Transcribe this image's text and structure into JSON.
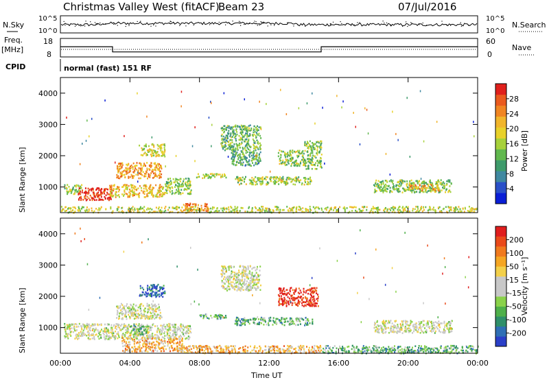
{
  "header": {
    "station": "Christmas Valley West (fitACF)",
    "beam": "Beam 23",
    "date": "07/Jul/2016"
  },
  "strips": {
    "nsky_label": "N.Sky",
    "nsearch_label": "N.Search",
    "noise_ticks": [
      "10^5",
      "10^0"
    ],
    "freq_label": "Freq.",
    "freq_unit": "[MHz]",
    "freq_ticks": [
      "18",
      "8"
    ],
    "freq_high_mhz": 13.5,
    "freq_low_mhz": 10.7,
    "nave_label": "Nave",
    "nave_ticks": [
      "60",
      "0"
    ],
    "cpid_label": "CPID",
    "cpid_text": "normal (fast) 151 RF"
  },
  "chart_data": [
    {
      "type": "heatmap",
      "name": "power",
      "ylabel": "Slant Range [km]",
      "xlabel": "",
      "xlim_hours": [
        0,
        24
      ],
      "ylim_km": [
        180,
        4500
      ],
      "y_ticks": [
        "1000",
        "2000",
        "3000",
        "4000"
      ],
      "colorbar": {
        "label": "Power [dB]",
        "ticks": [
          "4",
          "8",
          "12",
          "16",
          "20",
          "24",
          "28"
        ],
        "colors": [
          "#0a1ed6",
          "#2a50c8",
          "#3f88a0",
          "#3e9b6b",
          "#61b84e",
          "#a7d13a",
          "#e8d12a",
          "#f1b52b",
          "#f08522",
          "#ea5a1e",
          "#e0201c"
        ]
      },
      "regions": [
        {
          "t0": 0.2,
          "t1": 1.2,
          "r0": 800,
          "r1": 1100,
          "level": 0.45
        },
        {
          "t0": 1.0,
          "t1": 3.0,
          "r0": 600,
          "r1": 1000,
          "level": 0.95
        },
        {
          "t0": 2.8,
          "t1": 6.0,
          "r0": 700,
          "r1": 1100,
          "level": 0.65
        },
        {
          "t0": 3.2,
          "t1": 5.8,
          "r0": 1300,
          "r1": 1800,
          "level": 0.72
        },
        {
          "t0": 4.5,
          "t1": 6.0,
          "r0": 2000,
          "r1": 2400,
          "level": 0.55
        },
        {
          "t0": 6.0,
          "t1": 7.5,
          "r0": 800,
          "r1": 1300,
          "level": 0.45
        },
        {
          "t0": 7.0,
          "t1": 8.5,
          "r0": 250,
          "r1": 500,
          "level": 0.85
        },
        {
          "t0": 7.8,
          "t1": 9.5,
          "r0": 1300,
          "r1": 1450,
          "level": 0.55
        },
        {
          "t0": 9.2,
          "t1": 11.5,
          "r0": 2200,
          "r1": 3000,
          "level": 0.4
        },
        {
          "t0": 9.8,
          "t1": 11.5,
          "r0": 1700,
          "r1": 2200,
          "level": 0.35
        },
        {
          "t0": 10.0,
          "t1": 14.5,
          "r0": 1100,
          "r1": 1350,
          "level": 0.5
        },
        {
          "t0": 12.5,
          "t1": 14.0,
          "r0": 1700,
          "r1": 2200,
          "level": 0.5
        },
        {
          "t0": 14.0,
          "t1": 15.0,
          "r0": 1600,
          "r1": 2500,
          "level": 0.45
        },
        {
          "t0": 18.0,
          "t1": 22.5,
          "r0": 850,
          "r1": 1250,
          "level": 0.45
        },
        {
          "t0": 20.0,
          "t1": 21.8,
          "r0": 900,
          "r1": 1100,
          "level": 0.7
        },
        {
          "t0": 0.0,
          "t1": 24.0,
          "r0": 200,
          "r1": 400,
          "level": 0.55
        }
      ]
    },
    {
      "type": "heatmap",
      "name": "velocity",
      "ylabel": "Slant Range [km]",
      "xlabel": "Time UT",
      "xlim_hours": [
        0,
        24
      ],
      "ylim_km": [
        180,
        4500
      ],
      "y_ticks": [
        "1000",
        "2000",
        "3000",
        "4000"
      ],
      "x_ticks": [
        "00:00",
        "04:00",
        "08:00",
        "12:00",
        "16:00",
        "20:00",
        "00:00"
      ],
      "colorbar": {
        "label": "Velocity [m s⁻¹]",
        "ticks": [
          "200",
          "100",
          "50",
          "15",
          "-15",
          "-50",
          "-100",
          "-200"
        ],
        "colors": [
          "#2a3fc8",
          "#2f6fb5",
          "#2f8f6a",
          "#4fb04a",
          "#8ad24a",
          "#c8c8c8",
          "#c8c8c8",
          "#f3d04a",
          "#f5a623",
          "#f07a1e",
          "#ea4a1a",
          "#e01e1e"
        ]
      },
      "regions": [
        {
          "t0": 0.2,
          "t1": 7.5,
          "r0": 650,
          "r1": 1150,
          "level": 0.5
        },
        {
          "t0": 3.2,
          "t1": 5.8,
          "r0": 1300,
          "r1": 1800,
          "level": 0.5
        },
        {
          "t0": 4.5,
          "t1": 6.0,
          "r0": 2000,
          "r1": 2400,
          "level": 0.1
        },
        {
          "t0": 3.5,
          "t1": 7.0,
          "r0": 250,
          "r1": 700,
          "level": 0.68
        },
        {
          "t0": 4.0,
          "t1": 5.0,
          "r0": 800,
          "r1": 1100,
          "level": 0.3
        },
        {
          "t0": 8.0,
          "t1": 9.5,
          "r0": 1300,
          "r1": 1450,
          "level": 0.3
        },
        {
          "t0": 10.0,
          "t1": 14.5,
          "r0": 1100,
          "r1": 1350,
          "level": 0.3
        },
        {
          "t0": 12.5,
          "t1": 14.8,
          "r0": 1700,
          "r1": 2300,
          "level": 0.95
        },
        {
          "t0": 9.2,
          "t1": 11.5,
          "r0": 2200,
          "r1": 3000,
          "level": 0.5
        },
        {
          "t0": 18.0,
          "t1": 22.5,
          "r0": 850,
          "r1": 1250,
          "level": 0.5
        },
        {
          "t0": 7.0,
          "t1": 15.0,
          "r0": 200,
          "r1": 450,
          "level": 0.68
        },
        {
          "t0": 15.0,
          "t1": 24.0,
          "r0": 200,
          "r1": 450,
          "level": 0.3
        }
      ]
    }
  ]
}
